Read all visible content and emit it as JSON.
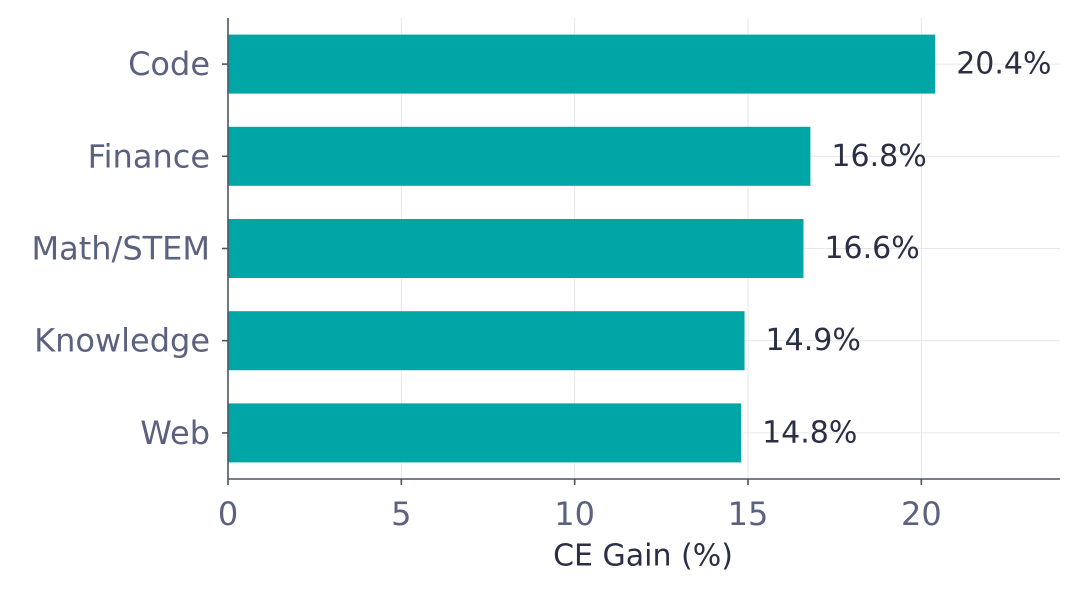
{
  "chart_data": {
    "type": "bar",
    "orientation": "horizontal",
    "categories": [
      "Code",
      "Finance",
      "Math/STEM",
      "Knowledge",
      "Web"
    ],
    "values": [
      20.4,
      16.8,
      16.6,
      14.9,
      14.8
    ],
    "value_labels": [
      "20.4%",
      "16.8%",
      "16.6%",
      "14.9%",
      "14.8%"
    ],
    "title": "",
    "xlabel": "CE Gain (%)",
    "ylabel": "",
    "xlim": [
      0,
      24
    ],
    "xticks": [
      0,
      5,
      10,
      15,
      20
    ],
    "grid": true,
    "colors": {
      "bar": "#00a6a6",
      "category_text": "#5a6280",
      "value_text": "#2a2f45",
      "axis_title_text": "#2a2f45"
    }
  }
}
